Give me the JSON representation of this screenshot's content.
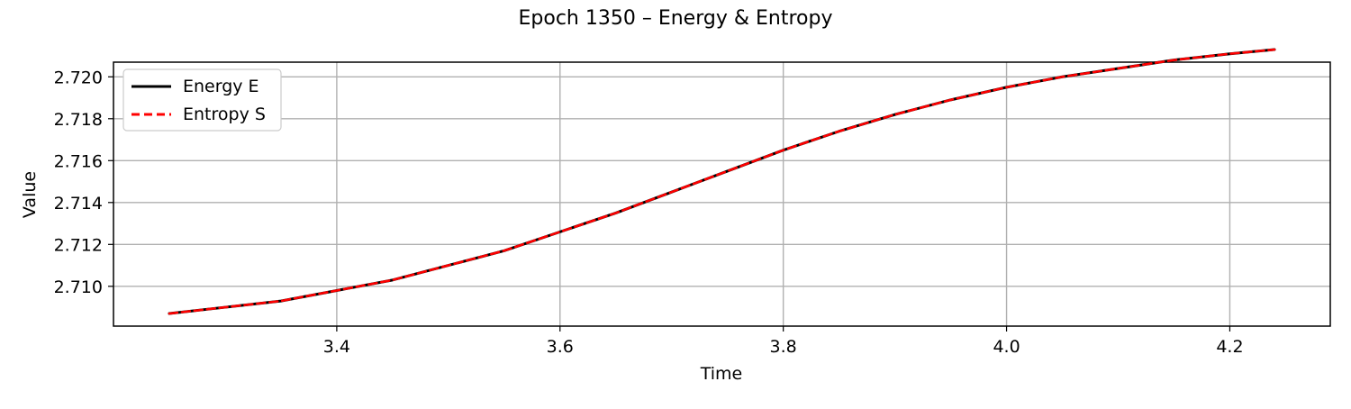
{
  "chart_data": {
    "type": "line",
    "title": "Epoch 1350 – Energy & Entropy",
    "xlabel": "Time",
    "ylabel": "Value",
    "xlim": [
      3.2,
      4.29
    ],
    "ylim": [
      2.7081,
      2.7207
    ],
    "x_ticks": [
      {
        "value": 3.4,
        "label": "3.4"
      },
      {
        "value": 3.6,
        "label": "3.6"
      },
      {
        "value": 3.8,
        "label": "3.8"
      },
      {
        "value": 4.0,
        "label": "4.0"
      },
      {
        "value": 4.2,
        "label": "4.2"
      }
    ],
    "y_ticks": [
      {
        "value": 2.71,
        "label": "2.710"
      },
      {
        "value": 2.712,
        "label": "2.712"
      },
      {
        "value": 2.714,
        "label": "2.714"
      },
      {
        "value": 2.716,
        "label": "2.716"
      },
      {
        "value": 2.718,
        "label": "2.718"
      },
      {
        "value": 2.72,
        "label": "2.720"
      }
    ],
    "grid": true,
    "legend_position": "top-left",
    "x": [
      3.25,
      3.3,
      3.35,
      3.4,
      3.45,
      3.5,
      3.55,
      3.6,
      3.65,
      3.7,
      3.75,
      3.8,
      3.85,
      3.9,
      3.95,
      4.0,
      4.05,
      4.1,
      4.15,
      4.2,
      4.24
    ],
    "series": [
      {
        "name": "Energy E",
        "color": "#000000",
        "style": "solid",
        "values": [
          2.7087,
          2.709,
          2.7093,
          2.7098,
          2.7103,
          2.711,
          2.7117,
          2.7126,
          2.7135,
          2.7145,
          2.7155,
          2.7165,
          2.7174,
          2.7182,
          2.7189,
          2.7195,
          2.72,
          2.7204,
          2.7208,
          2.7211,
          2.7213
        ]
      },
      {
        "name": "Entropy S",
        "color": "#ff0000",
        "style": "dashed",
        "values": [
          2.7087,
          2.709,
          2.7093,
          2.7098,
          2.7103,
          2.711,
          2.7117,
          2.7126,
          2.7135,
          2.7145,
          2.7155,
          2.7165,
          2.7174,
          2.7182,
          2.7189,
          2.7195,
          2.72,
          2.7204,
          2.7208,
          2.7211,
          2.7213
        ]
      }
    ]
  }
}
